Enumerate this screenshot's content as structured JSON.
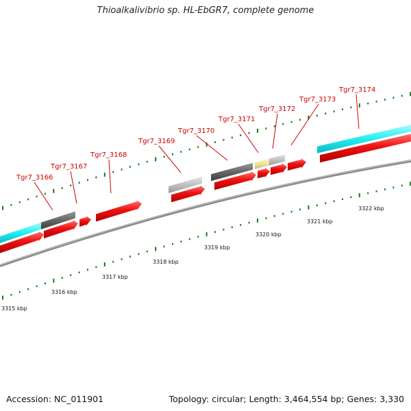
{
  "title": "Thioalkalivibrio sp. HL-EbGR7, complete genome",
  "footer": {
    "accession": "Accession: NC_011901",
    "topology": "Topology: circular; Length: 3,464,554 bp; Genes: 3,330"
  },
  "colors": {
    "backbone": "#8a8a8a",
    "cds": "#ee1111",
    "rna_cyan": "#22eef0",
    "feature_dark": "#666666",
    "feature_light": "#bfbfbf",
    "feature_yellow": "#f0e49a",
    "tick": "#137a13",
    "gene_label": "#cc0000"
  },
  "gene_labels": [
    "Tgr7_3166",
    "Tgr7_3167",
    "Tgr7_3168",
    "Tgr7_3169",
    "Tgr7_3170",
    "Tgr7_3171",
    "Tgr7_3172",
    "Tgr7_3173",
    "Tgr7_3174"
  ],
  "scale_labels": [
    "3315 kbp",
    "3316 kbp",
    "3317 kbp",
    "3318 kbp",
    "3319 kbp",
    "3320 kbp",
    "3321 kbp",
    "3322 kbp"
  ]
}
